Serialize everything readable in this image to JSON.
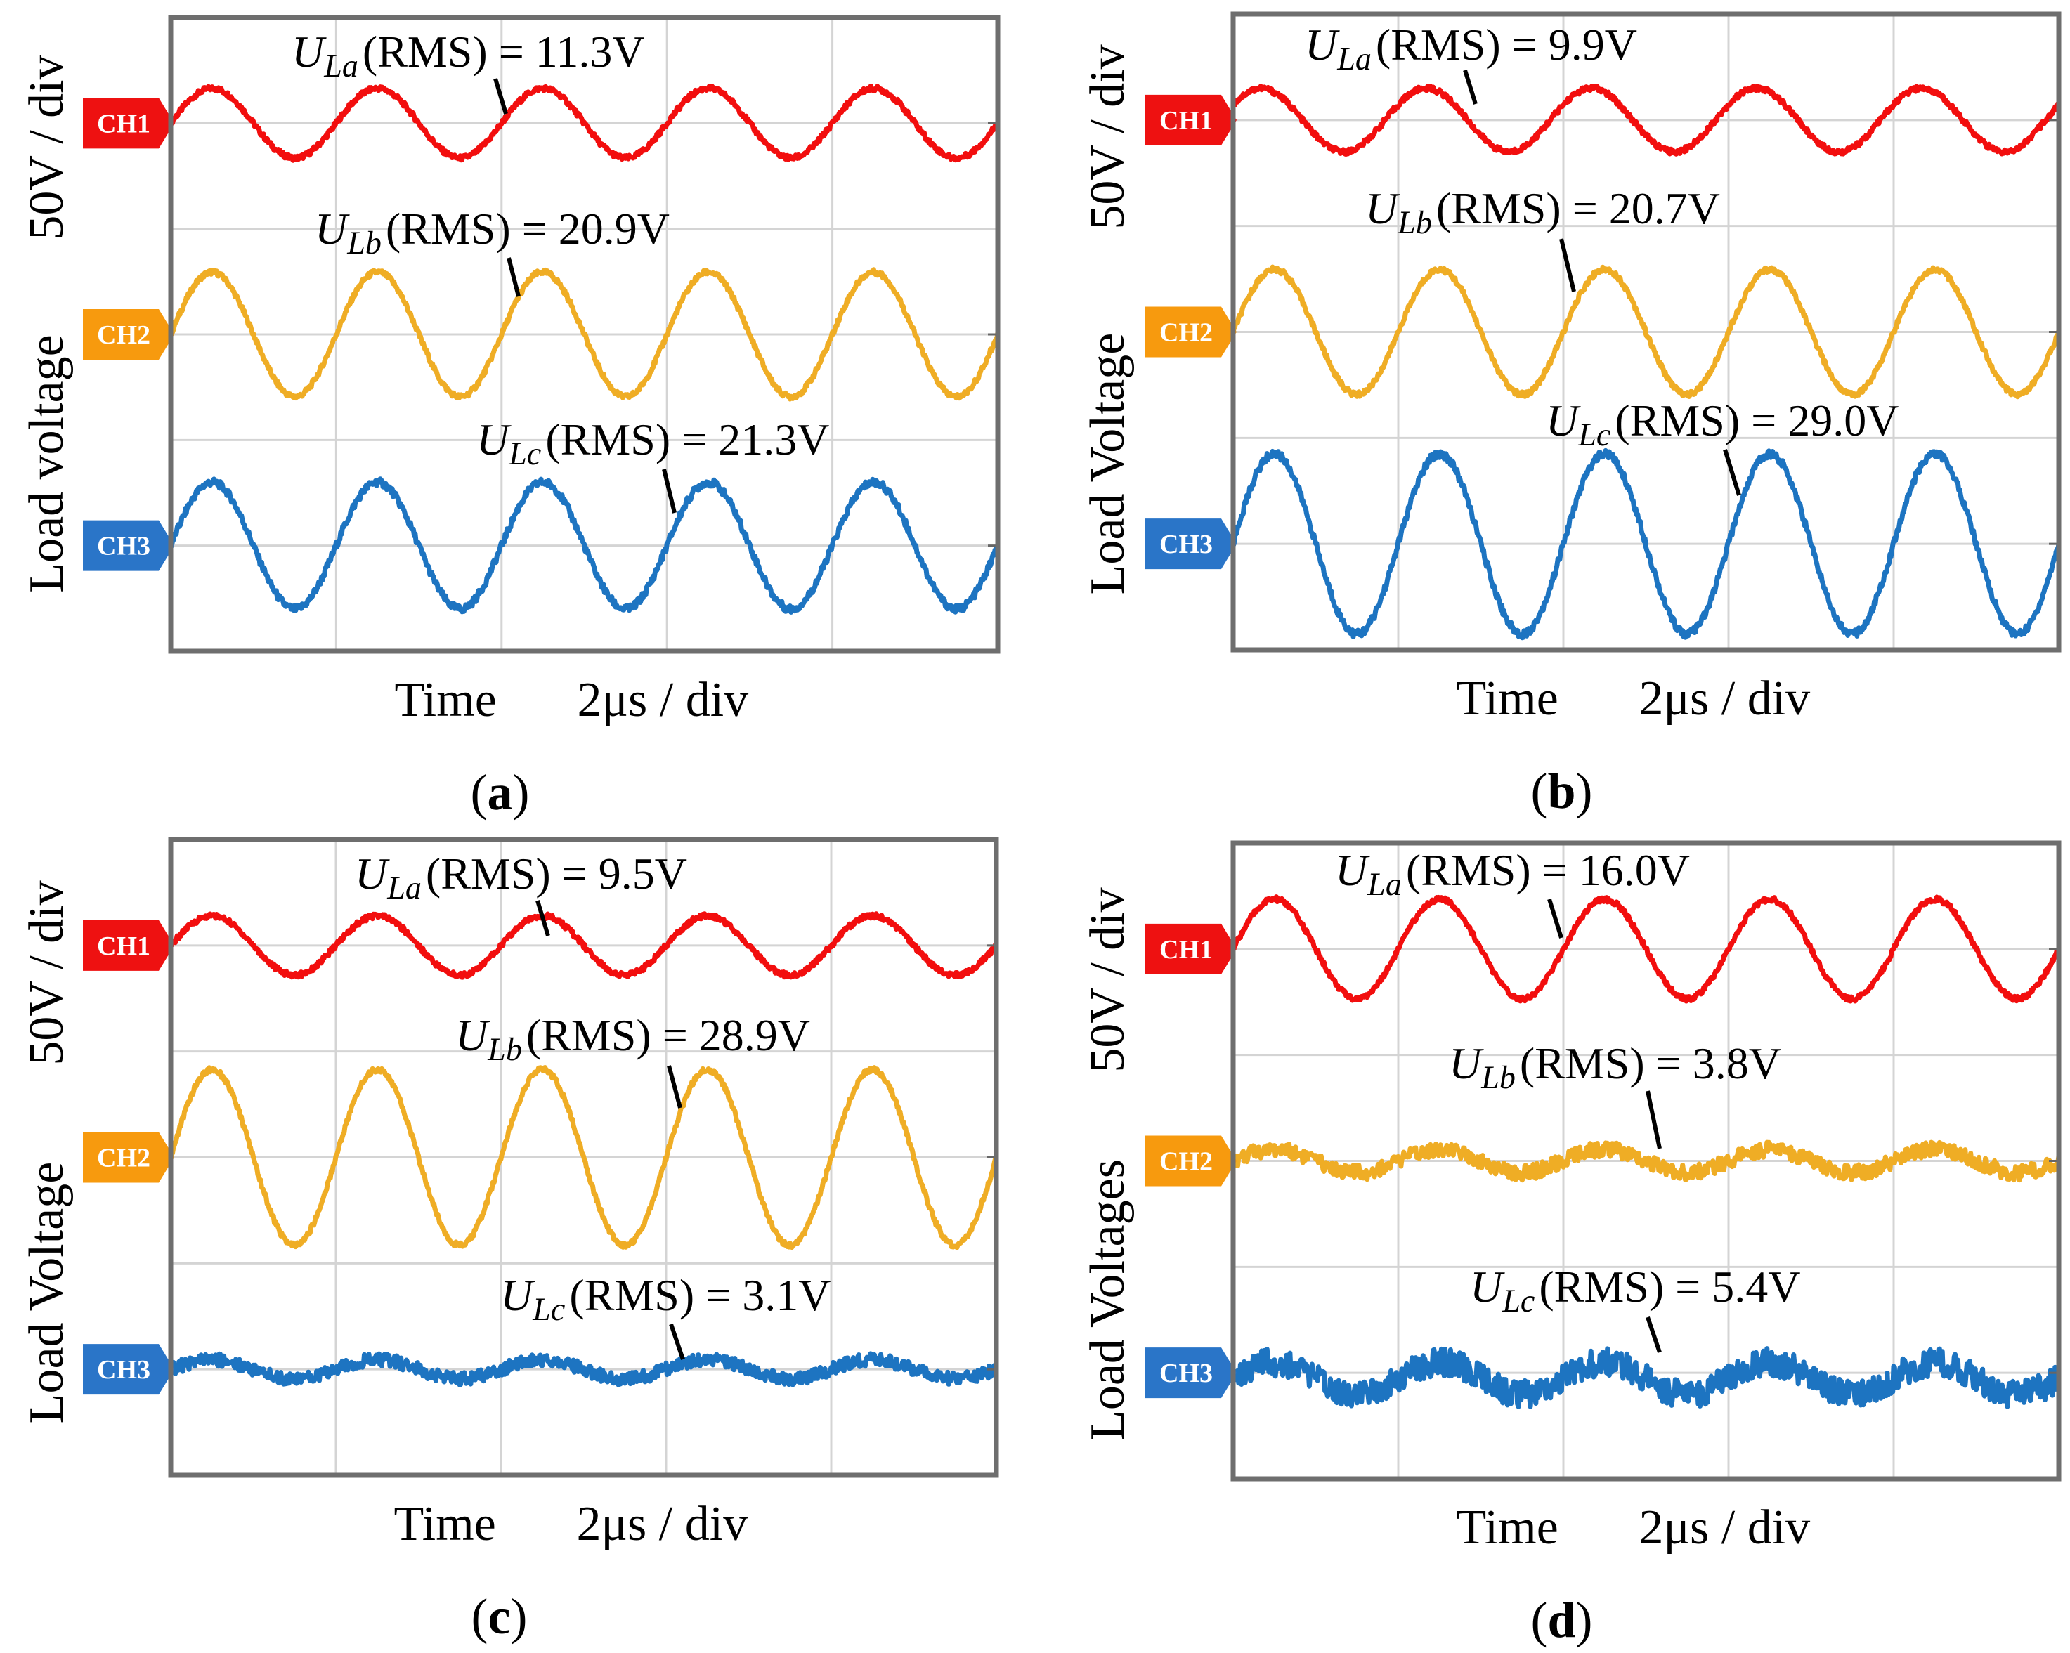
{
  "figure": {
    "x_unit_label": "Time",
    "x_scale_label": "2μs / div",
    "y_scale_label": "50V / div"
  },
  "colors": {
    "ch1": "#f20e0e",
    "ch2": "#efad25",
    "ch3": "#1d74c1",
    "tag_ch1": "#ee1111",
    "tag_ch2": "#f79a0e",
    "tag_ch3": "#2a75c8",
    "frame": "#6e6e6e",
    "grid": "#d4d4d4"
  },
  "chart_data": [
    {
      "type": "line",
      "panel": "a",
      "caption": "a",
      "ylabel": "Load voltage",
      "xlabel": "Time",
      "x_range_div": [
        0,
        5
      ],
      "y_range_div": [
        0,
        6
      ],
      "grid": true,
      "series": [
        {
          "name": "CH1",
          "label_var": "U",
          "label_sub": "La",
          "label_value": "(RMS) = 11.3V",
          "rms_v": 11.3,
          "amplitude_div": 0.33,
          "offset_div": 5.0,
          "cycles_per_div": 1.0,
          "phase_div": 0.0,
          "noise": 0.004
        },
        {
          "name": "CH2",
          "label_var": "U",
          "label_sub": "Lb",
          "label_value": "(RMS) = 20.9V",
          "rms_v": 20.9,
          "amplitude_div": 0.59,
          "offset_div": 3.0,
          "cycles_per_div": 1.0,
          "phase_div": 0.0,
          "noise": 0.004
        },
        {
          "name": "CH3",
          "label_var": "U",
          "label_sub": "Lc",
          "label_value": "(RMS) = 21.3V",
          "rms_v": 21.3,
          "amplitude_div": 0.6,
          "offset_div": 1.0,
          "cycles_per_div": 1.0,
          "phase_div": 0.0,
          "noise": 0.006
        }
      ]
    },
    {
      "type": "line",
      "panel": "b",
      "caption": "b",
      "ylabel": "Load Voltage",
      "xlabel": "Time",
      "x_range_div": [
        0,
        5
      ],
      "y_range_div": [
        0,
        6
      ],
      "grid": true,
      "series": [
        {
          "name": "CH1",
          "label_var": "U",
          "label_sub": "La",
          "label_value": "(RMS) = 9.9V",
          "rms_v": 9.9,
          "amplitude_div": 0.3,
          "offset_div": 5.0,
          "cycles_per_div": 1.0,
          "phase_div": -0.08,
          "noise": 0.004
        },
        {
          "name": "CH2",
          "label_var": "U",
          "label_sub": "Lb",
          "label_value": "(RMS) = 20.7V",
          "rms_v": 20.7,
          "amplitude_div": 0.59,
          "offset_div": 3.0,
          "cycles_per_div": 1.0,
          "phase_div": 0.0,
          "noise": 0.004
        },
        {
          "name": "CH3",
          "label_var": "U",
          "label_sub": "Lc",
          "label_value": "(RMS) = 29.0V",
          "rms_v": 29.0,
          "amplitude_div": 0.85,
          "offset_div": 1.0,
          "cycles_per_div": 1.0,
          "phase_div": 0.0,
          "noise": 0.006
        }
      ]
    },
    {
      "type": "line",
      "panel": "c",
      "caption": "c",
      "ylabel": "Load Voltage",
      "xlabel": "Time",
      "x_range_div": [
        0,
        5
      ],
      "y_range_div": [
        0,
        6
      ],
      "grid": true,
      "series": [
        {
          "name": "CH1",
          "label_var": "U",
          "label_sub": "La",
          "label_value": "(RMS) = 9.5V",
          "rms_v": 9.5,
          "amplitude_div": 0.28,
          "offset_div": 5.0,
          "cycles_per_div": 1.0,
          "phase_div": 0.0,
          "noise": 0.004
        },
        {
          "name": "CH2",
          "label_var": "U",
          "label_sub": "Lb",
          "label_value": "(RMS) = 28.9V",
          "rms_v": 28.9,
          "amplitude_div": 0.83,
          "offset_div": 3.0,
          "cycles_per_div": 1.0,
          "phase_div": 0.0,
          "noise": 0.004
        },
        {
          "name": "CH3",
          "label_var": "U",
          "label_sub": "Lc",
          "label_value": "(RMS) = 3.1V",
          "rms_v": 3.1,
          "amplitude_div": 0.09,
          "offset_div": 1.0,
          "cycles_per_div": 1.0,
          "phase_div": 0.0,
          "noise": 0.01
        }
      ]
    },
    {
      "type": "line",
      "panel": "d",
      "caption": "d",
      "ylabel": "Load Voltages",
      "xlabel": "Time",
      "x_range_div": [
        0,
        5
      ],
      "y_range_div": [
        0,
        6
      ],
      "grid": true,
      "series": [
        {
          "name": "CH1",
          "label_var": "U",
          "label_sub": "La",
          "label_value": "(RMS) = 16.0V",
          "rms_v": 16.0,
          "amplitude_div": 0.47,
          "offset_div": 5.0,
          "cycles_per_div": 1.0,
          "phase_div": 0.0,
          "noise": 0.004
        },
        {
          "name": "CH2",
          "label_var": "U",
          "label_sub": "Lb",
          "label_value": "(RMS) = 3.8V",
          "rms_v": 3.8,
          "amplitude_div": 0.11,
          "offset_div": 3.0,
          "cycles_per_div": 1.0,
          "phase_div": 0.0,
          "noise": 0.012
        },
        {
          "name": "CH3",
          "label_var": "U",
          "label_sub": "Lc",
          "label_value": "(RMS) = 5.4V",
          "rms_v": 5.4,
          "amplitude_div": 0.15,
          "offset_div": 0.95,
          "cycles_per_div": 1.0,
          "phase_div": 0.0,
          "noise": 0.022
        }
      ]
    }
  ]
}
